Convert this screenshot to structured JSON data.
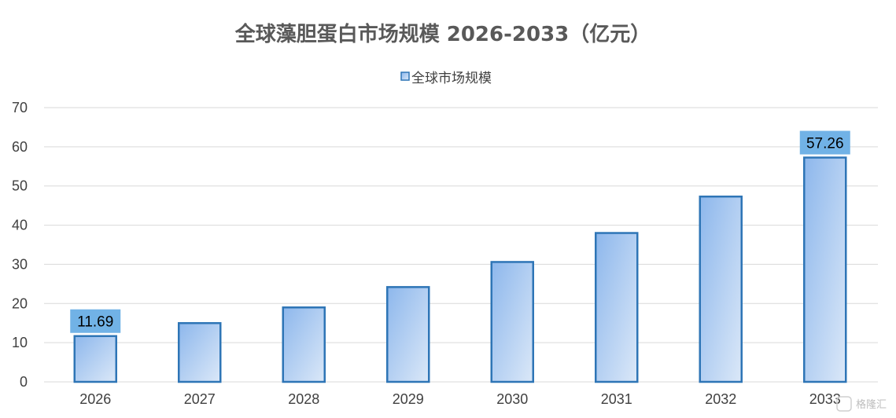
{
  "chart_data": {
    "type": "bar",
    "title": "全球藻胆蛋白市场规模 2026-2033（亿元）",
    "xlabel": "",
    "ylabel": "",
    "categories": [
      "2026",
      "2027",
      "2028",
      "2029",
      "2030",
      "2031",
      "2032",
      "2033"
    ],
    "series": [
      {
        "name": "全球市场规模",
        "values": [
          11.69,
          15.0,
          19.0,
          24.2,
          30.6,
          38.0,
          47.3,
          57.26
        ]
      }
    ],
    "data_labels": [
      {
        "index": 0,
        "text": "11.69"
      },
      {
        "index": 7,
        "text": "57.26"
      }
    ],
    "ylim": [
      0,
      70
    ],
    "yticks": [
      0,
      10,
      20,
      30,
      40,
      50,
      60,
      70
    ],
    "grid": true,
    "legend": "top-center",
    "colors": {
      "bar_fill_top": "#8db7ec",
      "bar_fill_bottom": "#dbe8f8",
      "bar_stroke": "#2e75b6",
      "label_bg": "#71b2e6",
      "grid": "#d9d9d9",
      "title": "#595959"
    }
  },
  "watermark": "格隆汇"
}
